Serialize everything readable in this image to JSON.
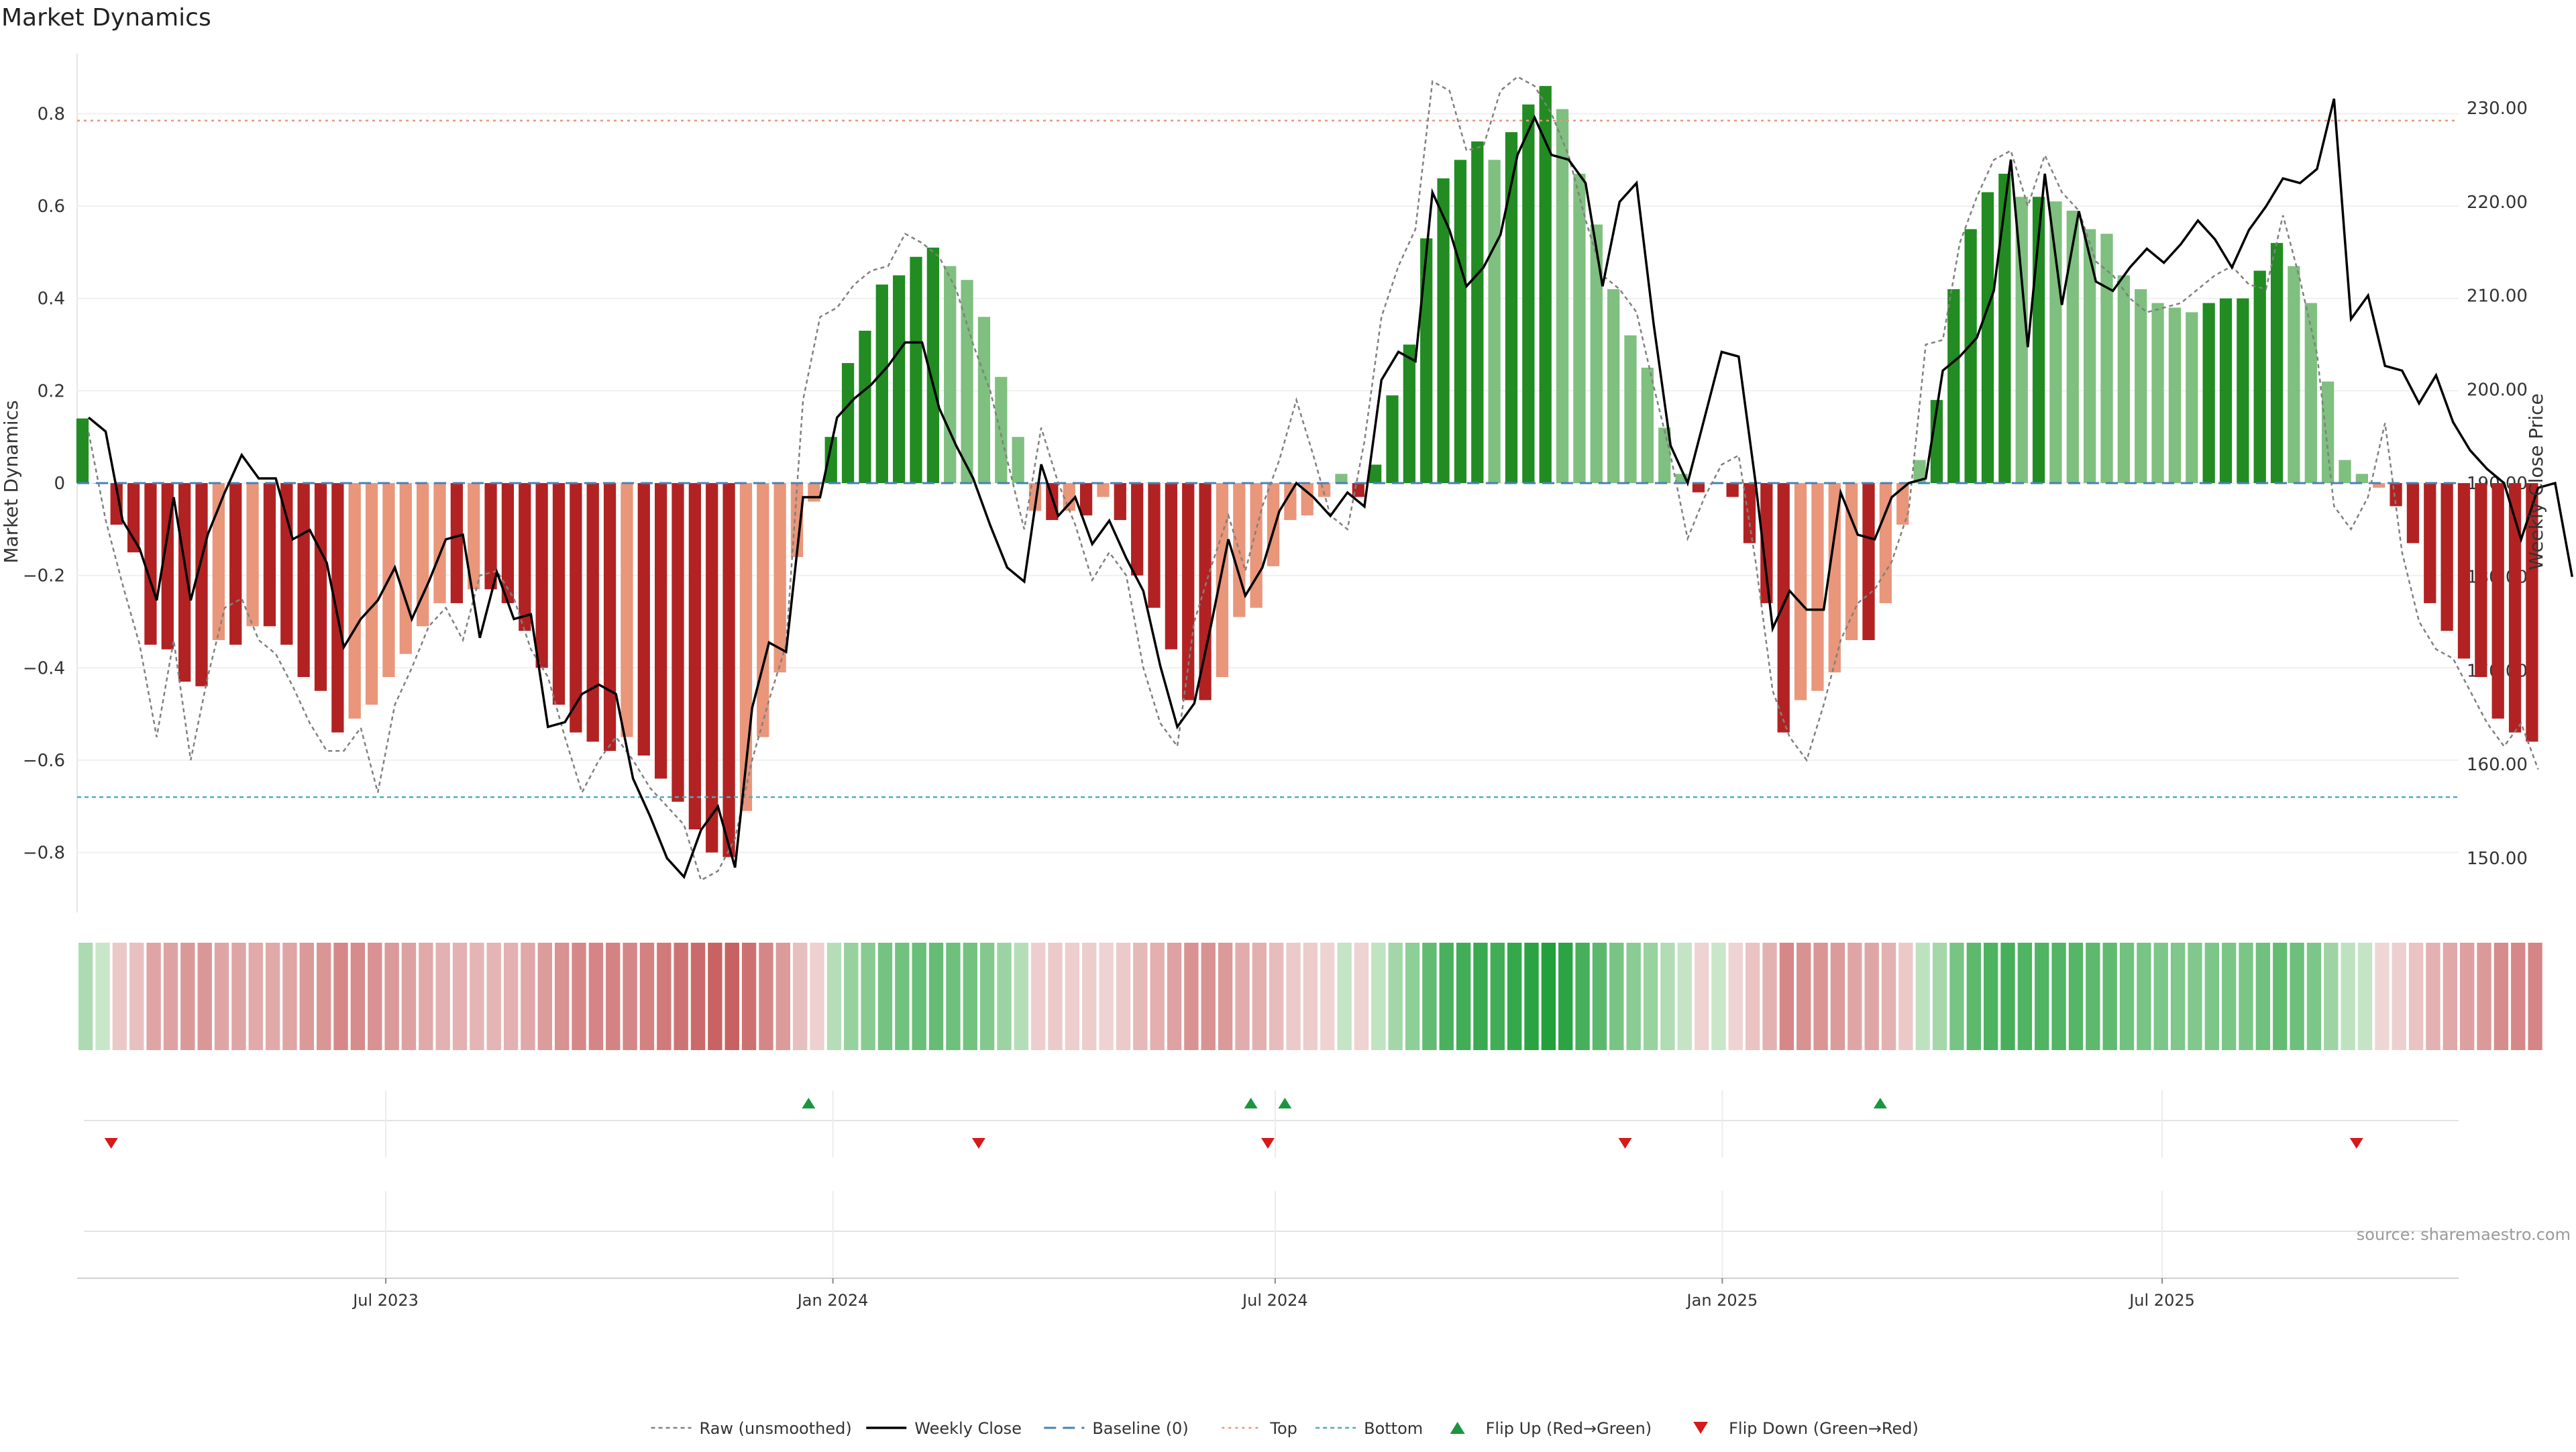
{
  "chart_data": {
    "type": "bar",
    "title": "Market Dynamics",
    "ylabel_left": "Market Dynamics",
    "ylabel_right": "Weekly Close Price",
    "source": "source: sharemaestro.com",
    "x_start": "2023-02-24",
    "x_end": "2025-10-31",
    "x_ticks": [
      {
        "date": "2023-07-01",
        "label": "Jul 2023"
      },
      {
        "date": "2024-01-01",
        "label": "Jan 2024"
      },
      {
        "date": "2024-07-01",
        "label": "Jul 2024"
      },
      {
        "date": "2025-01-01",
        "label": "Jan 2025"
      },
      {
        "date": "2025-07-01",
        "label": "Jul 2025"
      }
    ],
    "ylim_left": [
      -0.93,
      0.93
    ],
    "yticks_left": [
      "0.8",
      "0.6",
      "0.4",
      "0.2",
      "0",
      "−0.2",
      "−0.4",
      "−0.6",
      "−0.8"
    ],
    "ylim_right": [
      144.2,
      235.8
    ],
    "yticks_right": [
      "230.00",
      "220.00",
      "210.00",
      "200.00",
      "190.00",
      "180.00",
      "170.00",
      "160.00",
      "150.00"
    ],
    "top_level": 0.785,
    "bottom_level": -0.68,
    "baseline": 0,
    "dynamics": [
      0.14,
      0.0,
      -0.09,
      -0.15,
      -0.35,
      -0.36,
      -0.43,
      -0.44,
      -0.34,
      -0.35,
      -0.31,
      -0.31,
      -0.35,
      -0.42,
      -0.45,
      -0.54,
      -0.51,
      -0.48,
      -0.42,
      -0.37,
      -0.31,
      -0.26,
      -0.26,
      -0.23,
      -0.23,
      -0.26,
      -0.32,
      -0.4,
      -0.48,
      -0.54,
      -0.56,
      -0.58,
      -0.55,
      -0.59,
      -0.64,
      -0.69,
      -0.75,
      -0.8,
      -0.81,
      -0.71,
      -0.55,
      -0.41,
      -0.16,
      -0.04,
      0.1,
      0.26,
      0.33,
      0.43,
      0.45,
      0.49,
      0.51,
      0.47,
      0.44,
      0.36,
      0.23,
      0.1,
      -0.06,
      -0.08,
      -0.06,
      -0.07,
      -0.03,
      -0.08,
      -0.2,
      -0.27,
      -0.36,
      -0.47,
      -0.47,
      -0.42,
      -0.29,
      -0.27,
      -0.18,
      -0.08,
      -0.07,
      -0.03,
      0.02,
      -0.03,
      0.04,
      0.19,
      0.3,
      0.53,
      0.66,
      0.7,
      0.74,
      0.7,
      0.76,
      0.82,
      0.86,
      0.81,
      0.67,
      0.56,
      0.42,
      0.32,
      0.25,
      0.12,
      0.02,
      -0.02,
      0.0,
      -0.03,
      -0.13,
      -0.26,
      -0.54,
      -0.47,
      -0.45,
      -0.41,
      -0.34,
      -0.34,
      -0.26,
      -0.09,
      0.05,
      0.18,
      0.42,
      0.55,
      0.63,
      0.67,
      0.62,
      0.62,
      0.61,
      0.59,
      0.55,
      0.54,
      0.45,
      0.42,
      0.39,
      0.38,
      0.37,
      0.39,
      0.4,
      0.4,
      0.46,
      0.52,
      0.47,
      0.39,
      0.22,
      0.05,
      0.02,
      -0.01,
      -0.05,
      -0.13,
      -0.26,
      -0.32,
      -0.38,
      -0.42,
      -0.51,
      -0.54,
      -0.56
    ],
    "weekly_close": [
      197.0,
      195.5,
      186.0,
      183.0,
      177.5,
      188.5,
      177.5,
      184.5,
      189.0,
      193.0,
      190.5,
      190.5,
      184.0,
      185.0,
      181.5,
      172.5,
      175.5,
      177.5,
      181.0,
      175.5,
      179.5,
      184.0,
      184.5,
      173.5,
      180.5,
      175.5,
      176.0,
      164.0,
      164.5,
      167.5,
      168.5,
      167.5,
      158.5,
      154.5,
      150.0,
      148.0,
      153.0,
      155.5,
      149.0,
      166.0,
      173.0,
      172.0,
      188.5,
      188.5,
      197.0,
      199.0,
      200.5,
      202.5,
      205.0,
      205.0,
      198.0,
      194.0,
      190.5,
      185.5,
      181.0,
      179.5,
      192.0,
      186.5,
      188.5,
      183.5,
      186.0,
      182.0,
      178.5,
      170.5,
      164.0,
      166.5,
      175.0,
      184.0,
      178.0,
      181.0,
      187.0,
      190.0,
      188.5,
      186.5,
      189.0,
      187.5,
      201.0,
      204.0,
      203.0,
      221.0,
      217.0,
      211.0,
      213.0,
      216.5,
      225.0,
      229.0,
      225.0,
      224.5,
      222.0,
      211.0,
      220.0,
      222.0,
      207.0,
      194.0,
      190.0,
      197.0,
      204.0,
      203.5,
      190.0,
      174.5,
      178.5,
      176.5,
      176.5,
      189.0,
      184.5,
      184.0,
      188.5,
      190.0,
      190.5,
      202.0,
      203.5,
      205.5,
      210.5,
      224.5,
      204.5,
      223.0,
      209.0,
      219.0,
      211.5,
      210.5,
      213.0,
      215.0,
      213.5,
      215.5,
      218.0,
      216.0,
      213.0,
      217.0,
      219.5,
      222.5,
      222.0,
      223.5,
      231.0,
      207.5,
      210.0,
      202.5,
      202.0,
      198.5,
      201.5,
      196.5,
      193.5,
      191.5,
      190.0,
      184.0,
      189.5,
      190.0,
      180.0
    ],
    "raw_smooth_note": "",
    "raw": [
      0.11,
      -0.08,
      -0.22,
      -0.35,
      -0.55,
      -0.34,
      -0.6,
      -0.42,
      -0.27,
      -0.25,
      -0.34,
      -0.37,
      -0.44,
      -0.52,
      -0.58,
      -0.58,
      -0.53,
      -0.67,
      -0.48,
      -0.4,
      -0.31,
      -0.27,
      -0.34,
      -0.2,
      -0.19,
      -0.25,
      -0.36,
      -0.42,
      -0.55,
      -0.67,
      -0.6,
      -0.55,
      -0.6,
      -0.66,
      -0.7,
      -0.74,
      -0.86,
      -0.84,
      -0.77,
      -0.6,
      -0.47,
      -0.35,
      0.18,
      0.36,
      0.38,
      0.43,
      0.46,
      0.47,
      0.54,
      0.52,
      0.49,
      0.42,
      0.3,
      0.2,
      0.05,
      -0.1,
      0.12,
      0.0,
      -0.09,
      -0.21,
      -0.15,
      -0.2,
      -0.4,
      -0.52,
      -0.57,
      -0.3,
      -0.18,
      -0.07,
      -0.19,
      -0.05,
      0.05,
      0.18,
      0.06,
      -0.07,
      -0.1,
      0.09,
      0.36,
      0.47,
      0.55,
      0.87,
      0.85,
      0.72,
      0.73,
      0.85,
      0.88,
      0.86,
      0.8,
      0.71,
      0.57,
      0.45,
      0.42,
      0.37,
      0.21,
      0.06,
      -0.12,
      -0.03,
      0.04,
      0.06,
      -0.17,
      -0.45,
      -0.55,
      -0.6,
      -0.48,
      -0.34,
      -0.26,
      -0.23,
      -0.17,
      -0.06,
      0.3,
      0.31,
      0.52,
      0.62,
      0.7,
      0.72,
      0.6,
      0.71,
      0.63,
      0.59,
      0.48,
      0.45,
      0.4,
      0.37,
      0.38,
      0.39,
      0.42,
      0.45,
      0.47,
      0.43,
      0.42,
      0.58,
      0.44,
      0.28,
      -0.05,
      -0.1,
      -0.03,
      0.13,
      -0.15,
      -0.3,
      -0.36,
      -0.38,
      -0.45,
      -0.52,
      -0.57,
      -0.52,
      -0.62
    ],
    "flip_up": [
      "2023-12-22",
      "2024-06-21",
      "2024-07-05",
      "2025-03-07"
    ],
    "flip_down": [
      "2023-03-10",
      "2024-03-01",
      "2024-06-28",
      "2024-11-22",
      "2025-09-19"
    ],
    "legend": {
      "items": [
        {
          "key": "raw",
          "label": "Raw (unsmoothed)"
        },
        {
          "key": "close",
          "label": "Weekly Close"
        },
        {
          "key": "baseline",
          "label": "Baseline (0)"
        },
        {
          "key": "top",
          "label": "Top"
        },
        {
          "key": "bottom",
          "label": "Bottom"
        },
        {
          "key": "flipup",
          "label": "Flip Up (Red→Green)"
        },
        {
          "key": "flipdown",
          "label": "Flip Down (Green→Red)"
        }
      ],
      "placement": "bottom-center"
    },
    "colors": {
      "strong_green": "#228b22",
      "light_green": "#7fbf7f",
      "strong_red": "#b22222",
      "light_red": "#e9967a",
      "close_line": "#000000",
      "raw_line": "#808080",
      "baseline": "#4682b4",
      "top": "#e9967a",
      "bottom": "#4aacc6",
      "flip_up": "#1a9641",
      "flip_down": "#d7191c"
    }
  }
}
